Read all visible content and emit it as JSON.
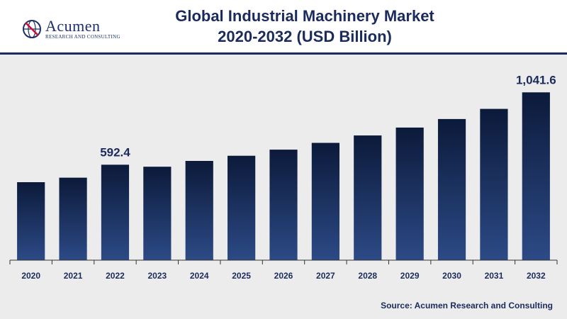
{
  "header": {
    "logo_text": "Acumen",
    "logo_subtext": "RESEARCH AND CONSULTING"
  },
  "chart_data": {
    "type": "bar",
    "title_line1": "Global Industrial Machinery Market",
    "title_line2": "2020-2032 (USD Billion)",
    "categories": [
      "2020",
      "2021",
      "2022",
      "2023",
      "2024",
      "2025",
      "2026",
      "2027",
      "2028",
      "2029",
      "2030",
      "2031",
      "2032"
    ],
    "values": [
      484,
      512,
      592.4,
      580,
      616,
      648,
      686,
      728,
      774,
      823,
      876,
      939,
      1041.6
    ],
    "data_labels": {
      "2022": "592.4",
      "2032": "1,041.6"
    },
    "ylim": [
      0,
      1100
    ],
    "grid": false,
    "colors": {
      "bar_top": "#0c1a3a",
      "bar_bottom": "#2c4a86",
      "axis": "#333333",
      "text": "#1a2b5c"
    }
  },
  "footer": {
    "source": "Source: Acumen Research and Consulting"
  }
}
